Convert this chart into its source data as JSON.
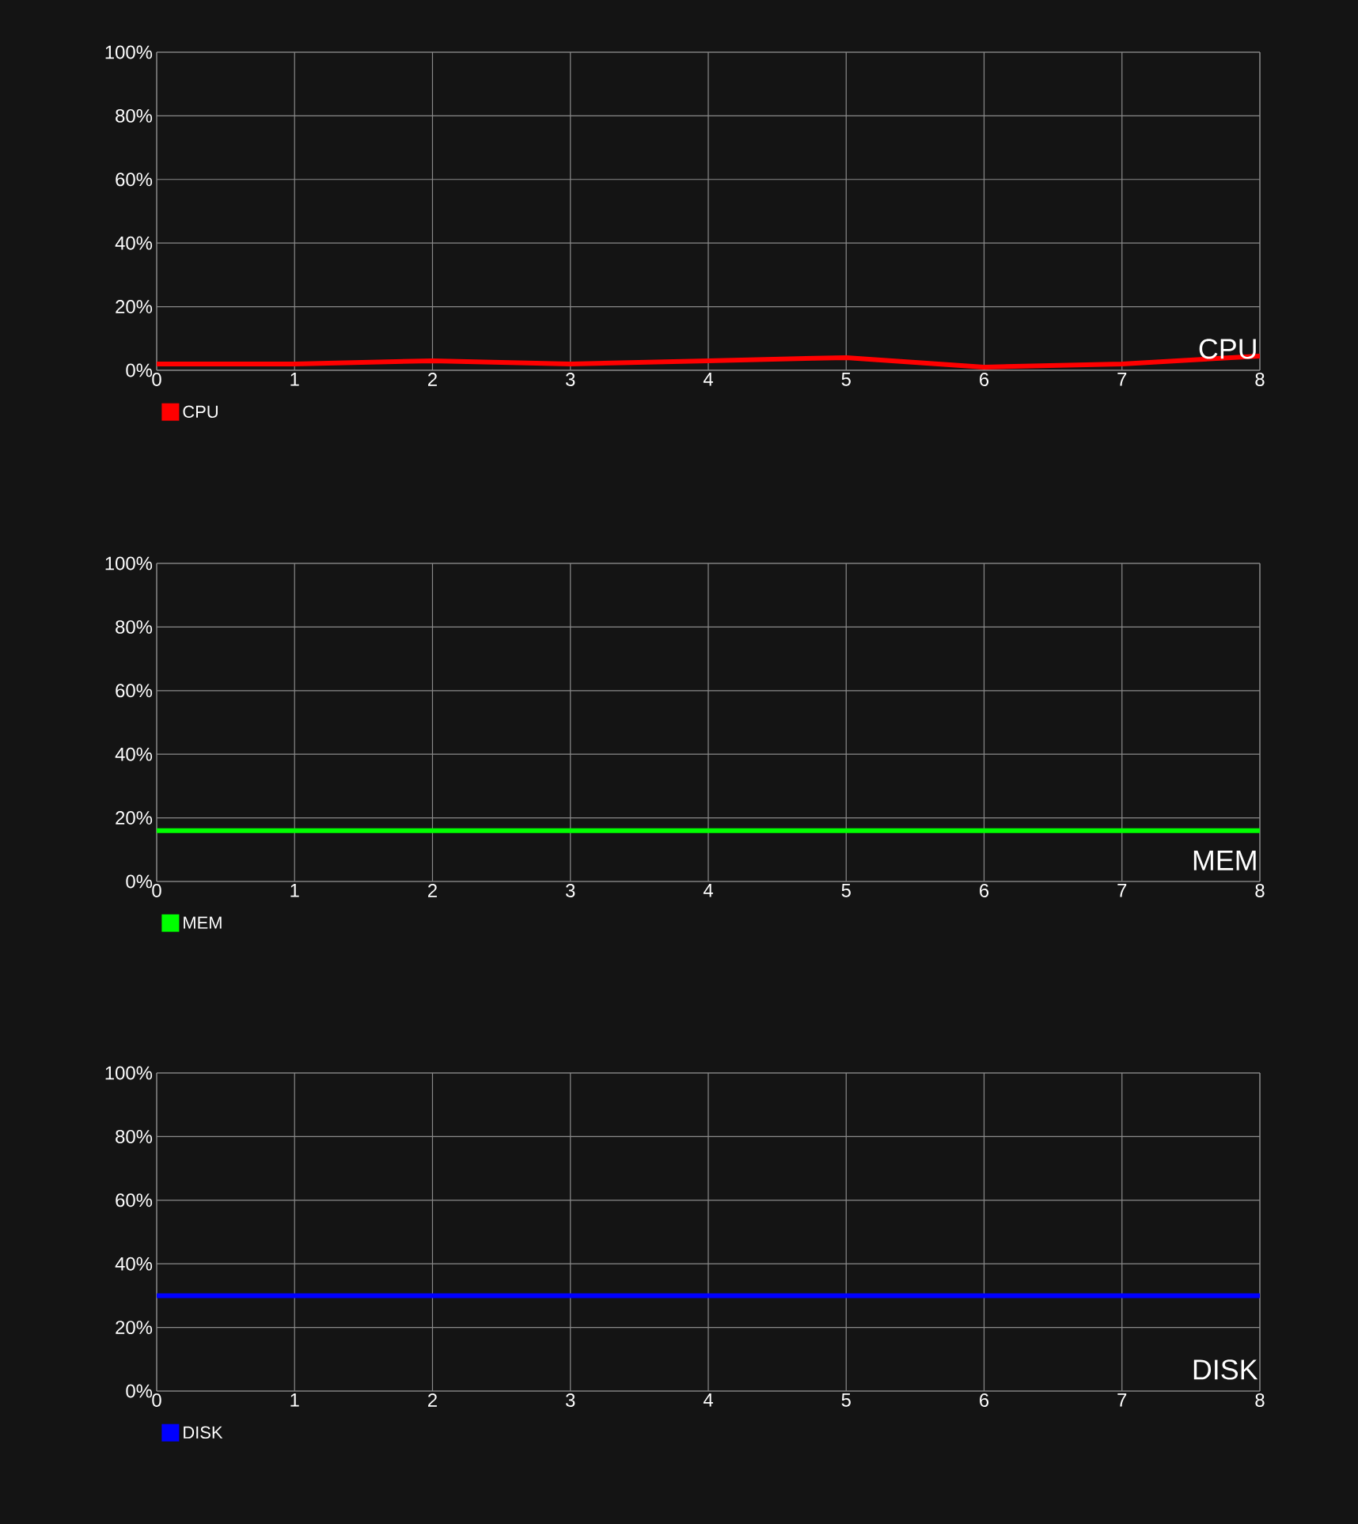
{
  "chart_data": [
    {
      "type": "line",
      "title": "CPU",
      "x": [
        0,
        1,
        2,
        3,
        4,
        5,
        6,
        7,
        8
      ],
      "xlim": [
        0,
        8
      ],
      "xticks": [
        0,
        1,
        2,
        3,
        4,
        5,
        6,
        7,
        8
      ],
      "ylim": [
        0,
        100
      ],
      "yticks": [
        {
          "value": 0,
          "label": "0%"
        },
        {
          "value": 20,
          "label": "20%"
        },
        {
          "value": 40,
          "label": "40%"
        },
        {
          "value": 60,
          "label": "60%"
        },
        {
          "value": 80,
          "label": "80%"
        },
        {
          "value": 100,
          "label": "100%"
        }
      ],
      "grid": true,
      "legend": "bottom left",
      "series": [
        {
          "name": "CPU",
          "color": "#ff0000",
          "values": [
            2,
            2,
            3,
            2,
            3,
            4,
            1,
            2,
            4.5
          ]
        }
      ]
    },
    {
      "type": "line",
      "title": "MEM",
      "x": [
        0,
        1,
        2,
        3,
        4,
        5,
        6,
        7,
        8
      ],
      "xlim": [
        0,
        8
      ],
      "xticks": [
        0,
        1,
        2,
        3,
        4,
        5,
        6,
        7,
        8
      ],
      "ylim": [
        0,
        100
      ],
      "yticks": [
        {
          "value": 0,
          "label": "0%"
        },
        {
          "value": 20,
          "label": "20%"
        },
        {
          "value": 40,
          "label": "40%"
        },
        {
          "value": 60,
          "label": "60%"
        },
        {
          "value": 80,
          "label": "80%"
        },
        {
          "value": 100,
          "label": "100%"
        }
      ],
      "grid": true,
      "legend": "bottom left",
      "series": [
        {
          "name": "MEM",
          "color": "#00ff00",
          "values": [
            16,
            16,
            16,
            16,
            16,
            16,
            16,
            16,
            16
          ]
        }
      ]
    },
    {
      "type": "line",
      "title": "DISK",
      "x": [
        0,
        1,
        2,
        3,
        4,
        5,
        6,
        7,
        8
      ],
      "xlim": [
        0,
        8
      ],
      "xticks": [
        0,
        1,
        2,
        3,
        4,
        5,
        6,
        7,
        8
      ],
      "ylim": [
        0,
        100
      ],
      "yticks": [
        {
          "value": 0,
          "label": "0%"
        },
        {
          "value": 20,
          "label": "20%"
        },
        {
          "value": 40,
          "label": "40%"
        },
        {
          "value": 60,
          "label": "60%"
        },
        {
          "value": 80,
          "label": "80%"
        },
        {
          "value": 100,
          "label": "100%"
        }
      ],
      "grid": true,
      "legend": "bottom left",
      "series": [
        {
          "name": "DISK",
          "color": "#0000ff",
          "values": [
            30,
            30,
            30,
            30,
            30,
            30,
            30,
            30,
            30
          ]
        }
      ]
    }
  ]
}
